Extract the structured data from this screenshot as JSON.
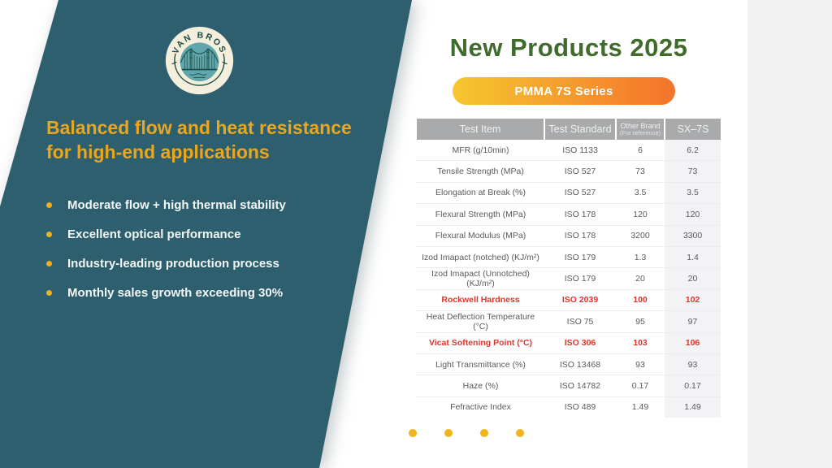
{
  "brand": {
    "logo_text": "VAN BROS"
  },
  "left_panel": {
    "heading_line1": "Balanced flow and heat resistance",
    "heading_line2": "for high-end applications",
    "bullets": [
      "Moderate flow + high thermal stability",
      "Excellent optical performance",
      "Industry-leading production process",
      "Monthly sales growth exceeding 30%"
    ]
  },
  "main": {
    "title": "New Products 2025",
    "series_badge": "PMMA 7S Series",
    "table": {
      "headers": [
        "Test Item",
        "Test Standard",
        "Other Brand",
        "SX–7S"
      ],
      "header_note": "(For reference)",
      "rows": [
        {
          "item": "MFR (g/10min)",
          "standard": "ISO 1133",
          "other": "6",
          "sx7s": "6.2",
          "red": false
        },
        {
          "item": "Tensile Strength (MPa)",
          "standard": "ISO 527",
          "other": "73",
          "sx7s": "73",
          "red": false
        },
        {
          "item": "Elongation at Break (%)",
          "standard": "ISO 527",
          "other": "3.5",
          "sx7s": "3.5",
          "red": false
        },
        {
          "item": "Flexural Strength (MPa)",
          "standard": "ISO 178",
          "other": "120",
          "sx7s": "120",
          "red": false
        },
        {
          "item": "Flexural Modulus (MPa)",
          "standard": "ISO 178",
          "other": "3200",
          "sx7s": "3300",
          "red": false
        },
        {
          "item": "Izod Imapact (notched) (KJ/m²)",
          "standard": "ISO 179",
          "other": "1.3",
          "sx7s": "1.4",
          "red": false
        },
        {
          "item": "Izod Imapact (Unnotched) (KJ/m²)",
          "standard": "ISO 179",
          "other": "20",
          "sx7s": "20",
          "red": false
        },
        {
          "item": "Rockwell Hardness",
          "standard": "ISO 2039",
          "other": "100",
          "sx7s": "102",
          "red": true
        },
        {
          "item": "Heat Deflection Temperature (°C)",
          "standard": "ISO 75",
          "other": "95",
          "sx7s": "97",
          "red": false
        },
        {
          "item": "Vicat Softening Point (°C)",
          "standard": "ISO 306",
          "other": "103",
          "sx7s": "106",
          "red": true
        },
        {
          "item": "Light Transmittance (%)",
          "standard": "ISO 13468",
          "other": "93",
          "sx7s": "93",
          "red": false
        },
        {
          "item": "Haze (%)",
          "standard": "ISO 14782",
          "other": "0.17",
          "sx7s": "0.17",
          "red": false
        },
        {
          "item": "Fefractive Index",
          "standard": "ISO 489",
          "other": "1.49",
          "sx7s": "1.49",
          "red": false
        }
      ]
    },
    "pagination": {
      "count": 4
    }
  },
  "colors": {
    "teal_panel": "#2e5f6e",
    "heading_yellow": "#e9a720",
    "title_green": "#3f6b2c",
    "pill_gradient_start": "#f6c72f",
    "pill_gradient_end": "#f4732c",
    "highlight_red": "#dc362c",
    "table_header_gray": "#a9aaac",
    "pagination_dot_yellow": "#f0b41c",
    "right_band_gray": "#f1f1f2"
  }
}
